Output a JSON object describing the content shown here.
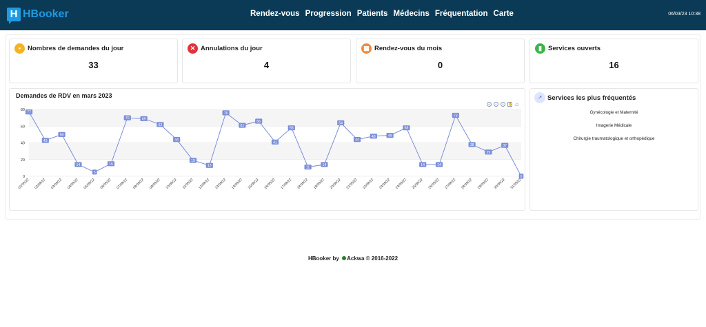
{
  "app": {
    "logo_letter": "H",
    "name": "HBooker",
    "datetime": "06/03/23 10:38"
  },
  "nav": [
    {
      "label": "Rendez-vous"
    },
    {
      "label": "Progression"
    },
    {
      "label": "Patients"
    },
    {
      "label": "Médecins"
    },
    {
      "label": "Fréquentation"
    },
    {
      "label": "Carte"
    }
  ],
  "stats": [
    {
      "title": "Nombres de demandes du jour",
      "value": "33",
      "icon": "calendar-icon",
      "color": "#f5b324"
    },
    {
      "title": "Annulations du jour",
      "value": "4",
      "icon": "cancel-icon",
      "color": "#e5303a"
    },
    {
      "title": "Rendez-vous du mois",
      "value": "0",
      "icon": "calendar-month-icon",
      "color": "#f08a3c"
    },
    {
      "title": "Services ouverts",
      "value": "16",
      "icon": "door-icon",
      "color": "#3bb54a"
    }
  ],
  "chart": {
    "title": "Demandes de RDV en mars 2023",
    "color": "#7b8ed8"
  },
  "chart_data": {
    "type": "line",
    "title": "Demandes de RDV en mars 2023",
    "xlabel": "",
    "ylabel": "",
    "ylim": [
      0,
      80
    ],
    "yticks": [
      0,
      20,
      40,
      60,
      80
    ],
    "grid": true,
    "x": [
      "01/08/22",
      "02/08/22",
      "03/08/22",
      "04/08/22",
      "05/08/22",
      "06/08/22",
      "07/08/22",
      "08/08/22",
      "09/08/22",
      "10/08/22",
      "11/08/22",
      "12/08/22",
      "13/08/22",
      "14/08/22",
      "15/08/22",
      "16/08/22",
      "17/08/22",
      "18/08/22",
      "19/08/22",
      "20/08/22",
      "21/08/22",
      "22/08/22",
      "23/08/22",
      "24/08/22",
      "25/08/22",
      "26/08/22",
      "27/08/22",
      "28/08/22",
      "29/08/22",
      "30/08/22",
      "31/08/22"
    ],
    "series": [
      {
        "values": [
          77,
          43,
          50,
          14,
          5,
          15,
          70,
          69,
          62,
          44,
          19,
          13,
          76,
          61,
          66,
          41,
          58,
          11,
          14,
          64,
          44,
          48,
          49,
          58,
          14,
          14,
          73,
          38,
          29,
          37,
          0
        ]
      }
    ]
  },
  "services": {
    "title": "Services les plus fréquentés",
    "icon": "chart-line-icon",
    "items": [
      "Gynécologie et Maternité",
      "Imagerie Médicale",
      "Chirurgie traumatologique et orthopédique"
    ]
  },
  "footer": {
    "prefix": "HBooker by",
    "brand": "Ackwa",
    "suffix": "© 2016-2022"
  }
}
